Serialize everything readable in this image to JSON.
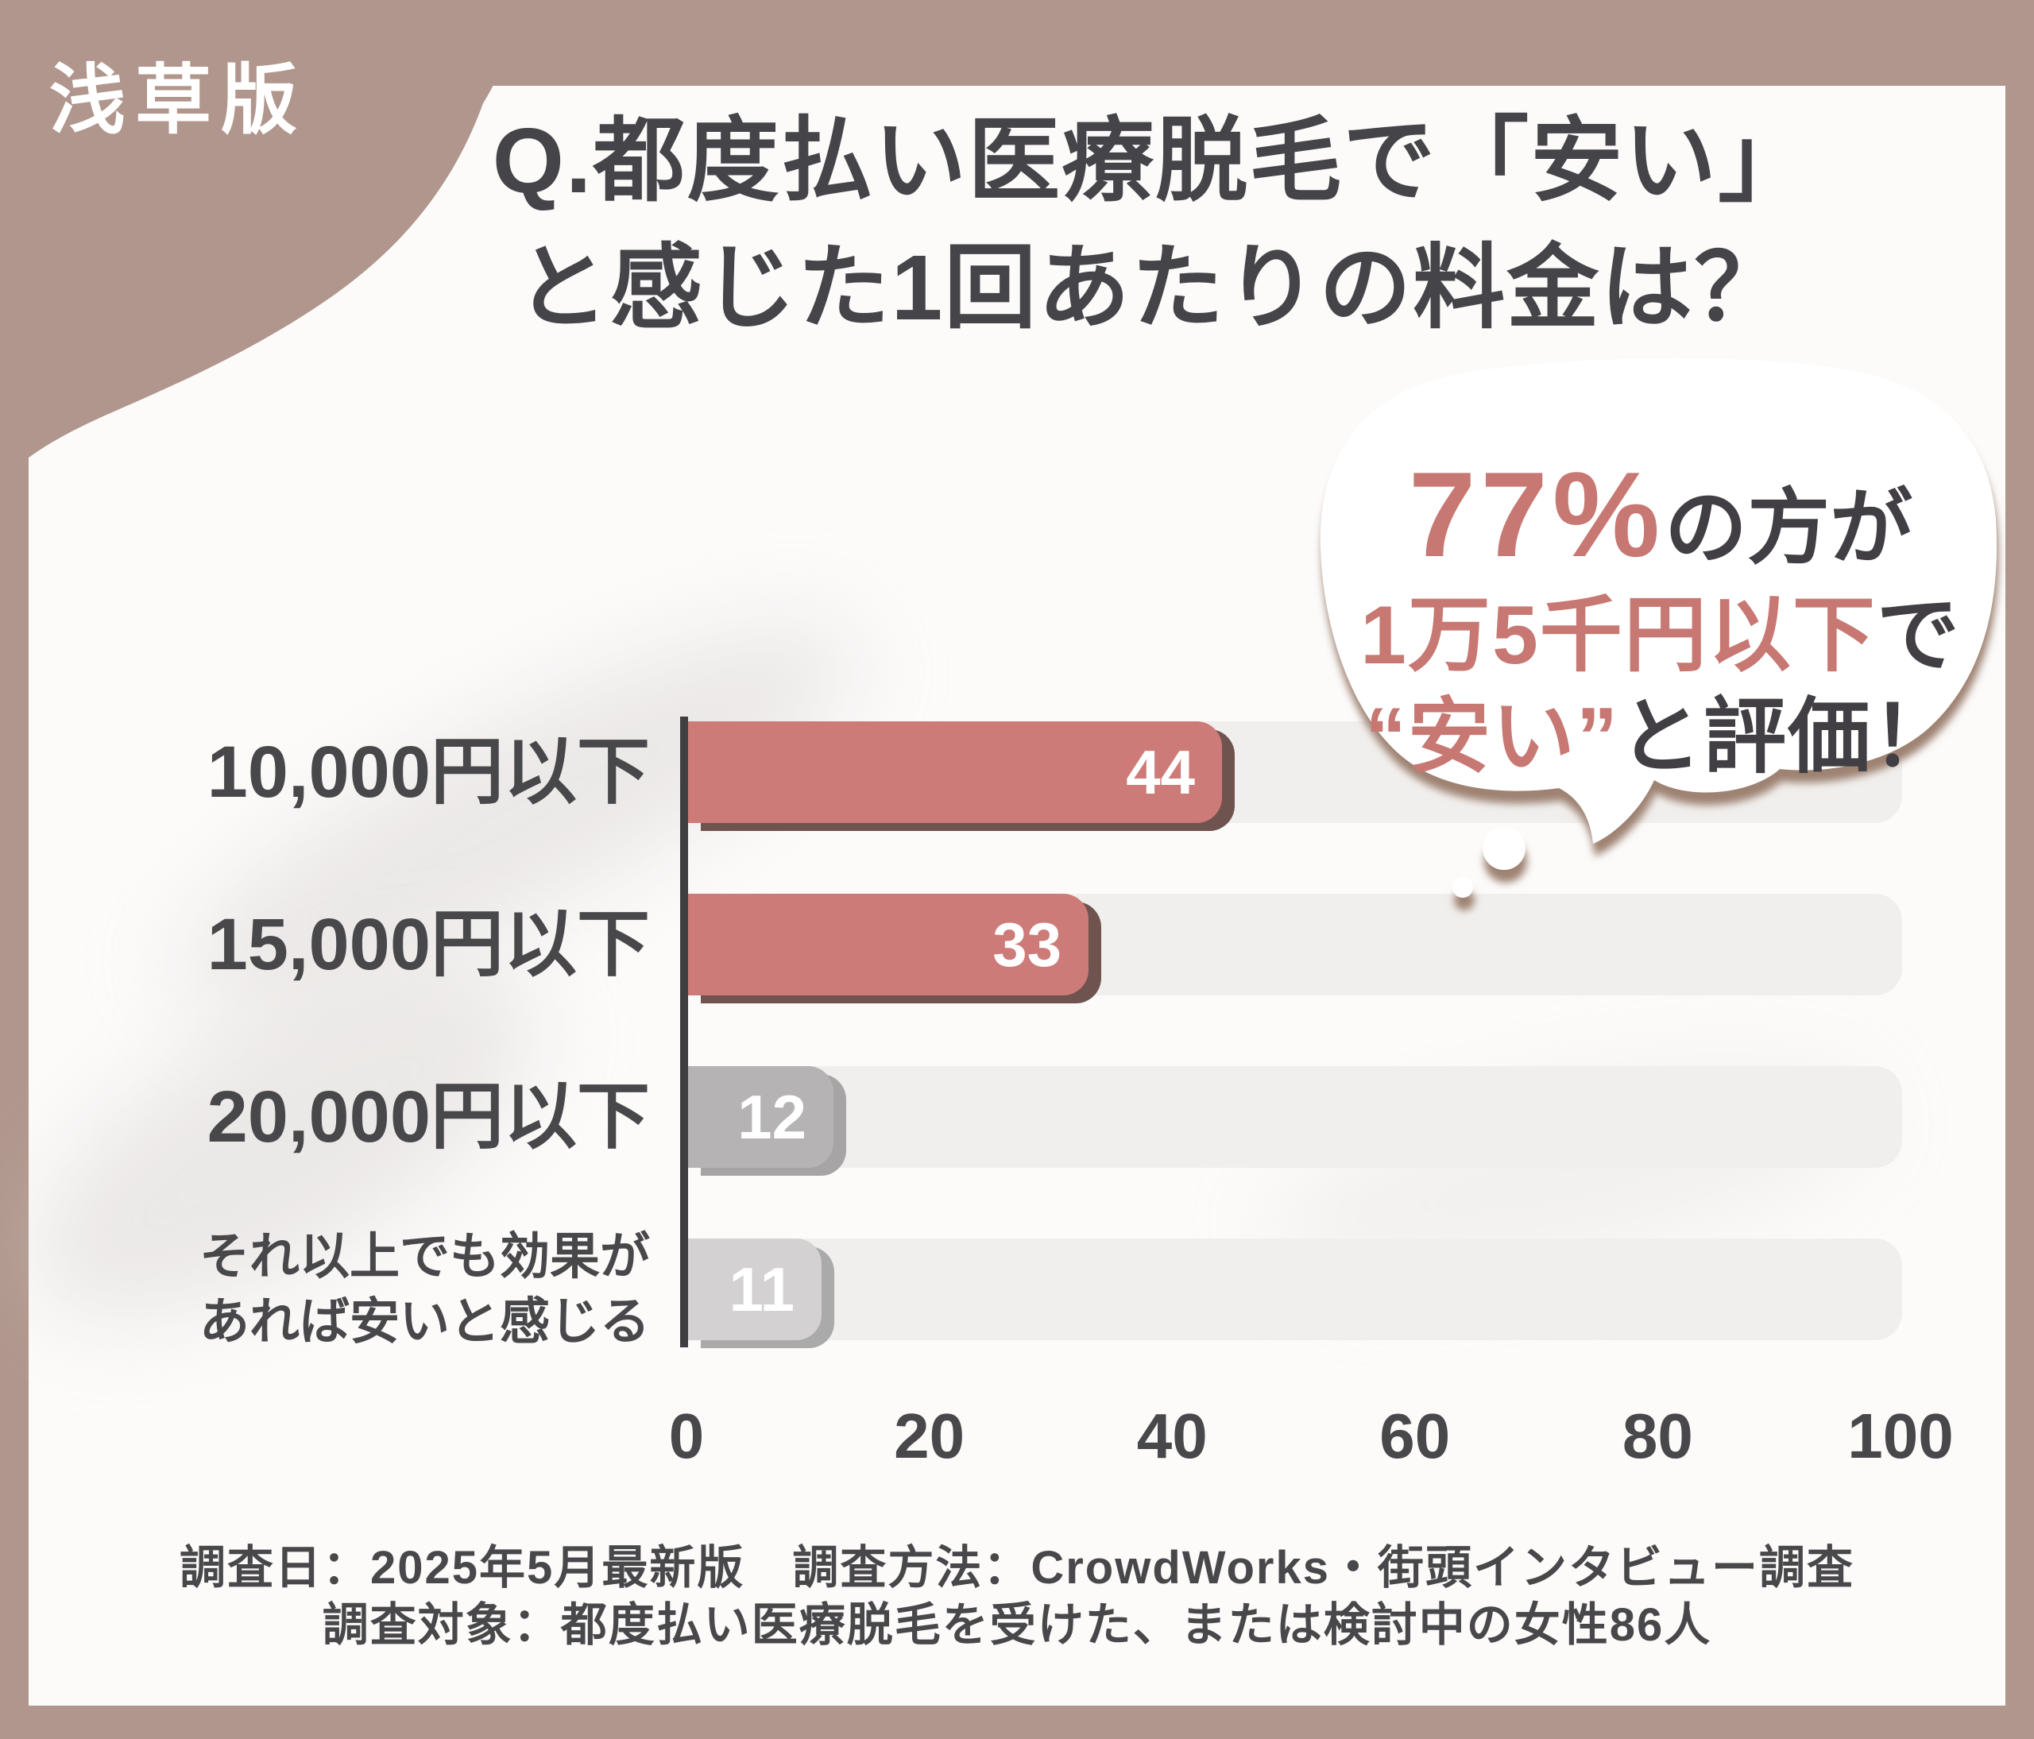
{
  "badge": {
    "label": "浅草版"
  },
  "title": {
    "line1": "Q.都度払い医療脱毛で「安い」",
    "line2": "と感じた1回あたりの料金は？"
  },
  "bubble": {
    "line1_highlight": "77%",
    "line1_rest": "の方が",
    "line2_highlight": "1万5千円以下",
    "line2_rest": "で",
    "line3_highlight": "“安い”",
    "line3_rest": "と評価！"
  },
  "chart_data": {
    "type": "bar",
    "orientation": "horizontal",
    "title": "Q.都度払い医療脱毛で「安い」と感じた1回あたりの料金は？",
    "categories": [
      "10,000円以下",
      "15,000円以下",
      "20,000円以下",
      "それ以上でも効果が\nあれば安いと感じる"
    ],
    "values": [
      44,
      33,
      12,
      11
    ],
    "xticks": [
      0,
      20,
      40,
      60,
      80,
      100
    ],
    "xlim": [
      0,
      100
    ],
    "grid": false,
    "legend": false,
    "bar_colors": [
      "#cd7b78",
      "#cd7b78",
      "#b5b3b3",
      "#d3d1d1"
    ],
    "bar_edge_colors": [
      "#6f534f",
      "#6f534f",
      "#a6a4a4",
      "#abaaaa"
    ],
    "value_label_color": "#ffffff",
    "track_color": "#f1efed"
  },
  "footer": {
    "line1": "調査日：2025年5月最新版　調査方法：CrowdWorks・街頭インタビュー調査",
    "line2": "調査対象：都度払い医療脱毛を受けた、または検討中の女性86人"
  },
  "colors": {
    "frame": "#b0968c",
    "card": "#fcfbfa",
    "title_text": "#454449",
    "bubble_highlight": "#c87873",
    "bubble_text": "#413f43",
    "axis": "#3f3e41",
    "label_text": "#48474a",
    "bubble_shadow": "#9e8272"
  }
}
